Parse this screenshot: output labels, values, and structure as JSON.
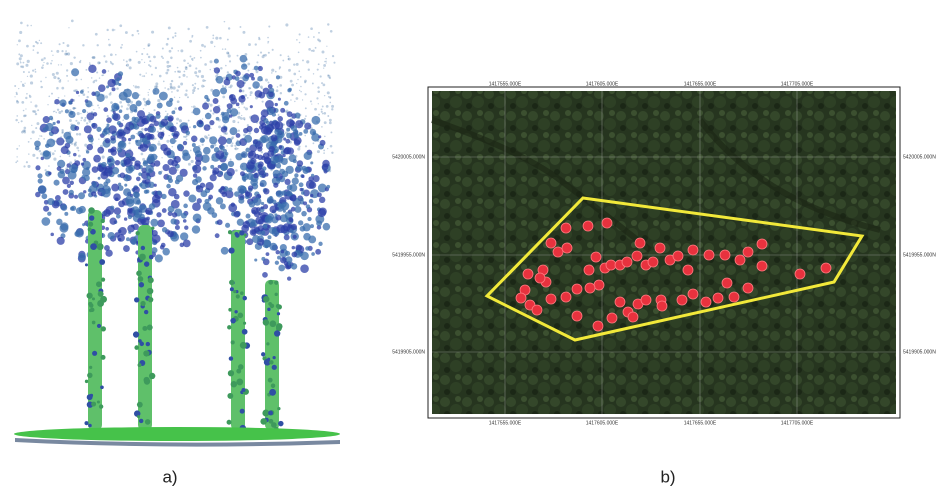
{
  "panels": [
    {
      "label": "a)"
    },
    {
      "label": "b)",
      "map": {
        "top_labels": [
          "1417555.000E",
          "1417605.000E",
          "1417655.000E",
          "1417705.000E"
        ],
        "bottom_labels": [
          "1417555.000E",
          "1417605.000E",
          "1417655.000E",
          "1417705.000E"
        ],
        "left_labels": [
          "5420005.000N",
          "5419955.000N",
          "5419905.000N"
        ],
        "right_labels": [
          "5420005.000N",
          "5419955.000N",
          "5419905.000N"
        ]
      }
    }
  ]
}
